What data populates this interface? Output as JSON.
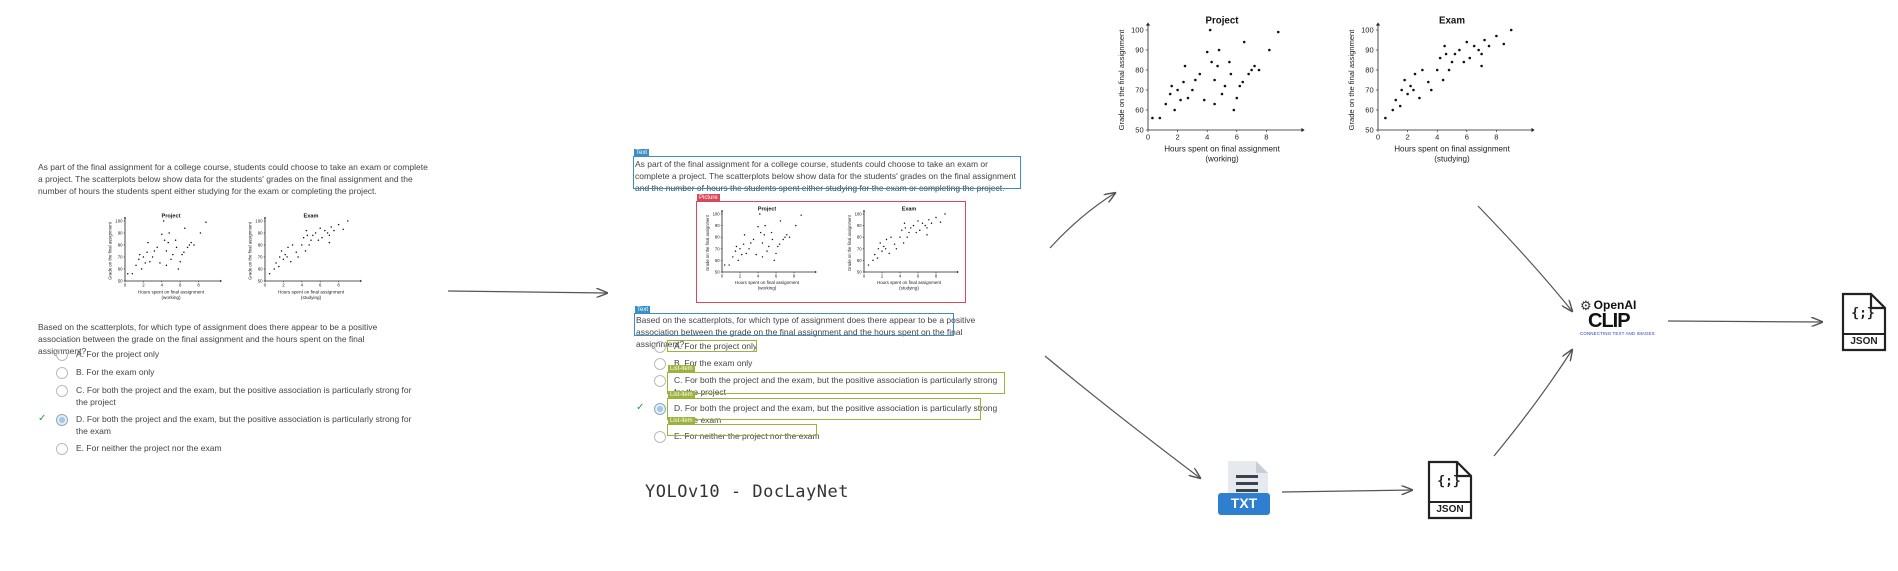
{
  "question": {
    "intro": "As part of the final assignment for a college course, students could choose to take an exam or complete a project.  The scatterplots below show data for the students' grades on the final assignment and the number of hours the students spent either studying for the exam or completing the project.",
    "prompt": "Based on the scatterplots, for which type of assignment does there appear to be a positive association between the grade on the final assignment and the hours spent on the final assignment?",
    "options": [
      {
        "letter": "A.",
        "text": "For the project only",
        "selected": false
      },
      {
        "letter": "B.",
        "text": "For the exam only",
        "selected": false
      },
      {
        "letter": "C.",
        "text": "For both the project and the exam, but the positive association is particularly strong for the project",
        "selected": false
      },
      {
        "letter": "D.",
        "text": "For both the project and the exam, but the positive association is particularly strong for the exam",
        "selected": true
      },
      {
        "letter": "E.",
        "text": "For neither the project nor the exam",
        "selected": false
      }
    ]
  },
  "pipeline": {
    "detector_label": "YOLOv10 - DocLayNet",
    "clip_brand": "OpenAI",
    "clip_name": "CLIP",
    "clip_tagline": "CONNECTING TEXT AND IMAGES",
    "txt_label": "TXT",
    "json_label": "JSON",
    "json_glyph": "{;}",
    "layout_tags": {
      "text": "Text",
      "picture": "Picture",
      "list": "List-item"
    }
  },
  "chart_data": [
    {
      "type": "scatter",
      "title": "Project",
      "xlabel": "Hours spent on final assignment\n(working)",
      "ylabel": "Grade on the final assignment",
      "xlim": [
        0,
        10
      ],
      "ylim": [
        50,
        100
      ],
      "xticks": [
        0,
        2,
        4,
        6,
        8
      ],
      "yticks": [
        50,
        60,
        70,
        80,
        90,
        100
      ],
      "x": [
        0.3,
        0.8,
        1.2,
        1.5,
        1.6,
        1.8,
        2.0,
        2.2,
        2.4,
        2.5,
        2.7,
        3.0,
        3.2,
        3.5,
        3.8,
        4.0,
        4.2,
        4.3,
        4.5,
        4.5,
        4.7,
        4.8,
        5.0,
        5.2,
        5.5,
        5.6,
        5.8,
        6.0,
        6.2,
        6.4,
        6.5,
        6.8,
        7.0,
        7.2,
        7.5,
        8.2,
        8.8
      ],
      "y": [
        56,
        56,
        63,
        68,
        72,
        60,
        70,
        65,
        74,
        82,
        66,
        70,
        75,
        78,
        65,
        89,
        100,
        84,
        75,
        63,
        82,
        90,
        68,
        72,
        84,
        78,
        60,
        66,
        72,
        74,
        94,
        78,
        80,
        82,
        80,
        90,
        99
      ]
    },
    {
      "type": "scatter",
      "title": "Exam",
      "xlabel": "Hours spent on final assignment\n(studying)",
      "ylabel": "Grade on the final assignment",
      "xlim": [
        0,
        10
      ],
      "ylim": [
        50,
        100
      ],
      "xticks": [
        0,
        2,
        4,
        6,
        8
      ],
      "yticks": [
        50,
        60,
        70,
        80,
        90,
        100
      ],
      "x": [
        0.5,
        1.0,
        1.2,
        1.5,
        1.6,
        1.8,
        2.0,
        2.2,
        2.4,
        2.5,
        2.8,
        3.0,
        3.4,
        3.6,
        4.0,
        4.2,
        4.4,
        4.5,
        4.6,
        4.8,
        5.0,
        5.2,
        5.5,
        5.8,
        6.0,
        6.2,
        6.5,
        6.8,
        7.0,
        7.0,
        7.2,
        7.5,
        8.0,
        8.5,
        9.0
      ],
      "y": [
        56,
        60,
        65,
        62,
        70,
        75,
        68,
        72,
        70,
        78,
        66,
        80,
        74,
        70,
        80,
        86,
        75,
        92,
        88,
        80,
        84,
        88,
        90,
        84,
        94,
        86,
        92,
        90,
        88,
        82,
        95,
        92,
        97,
        93,
        100
      ]
    }
  ]
}
